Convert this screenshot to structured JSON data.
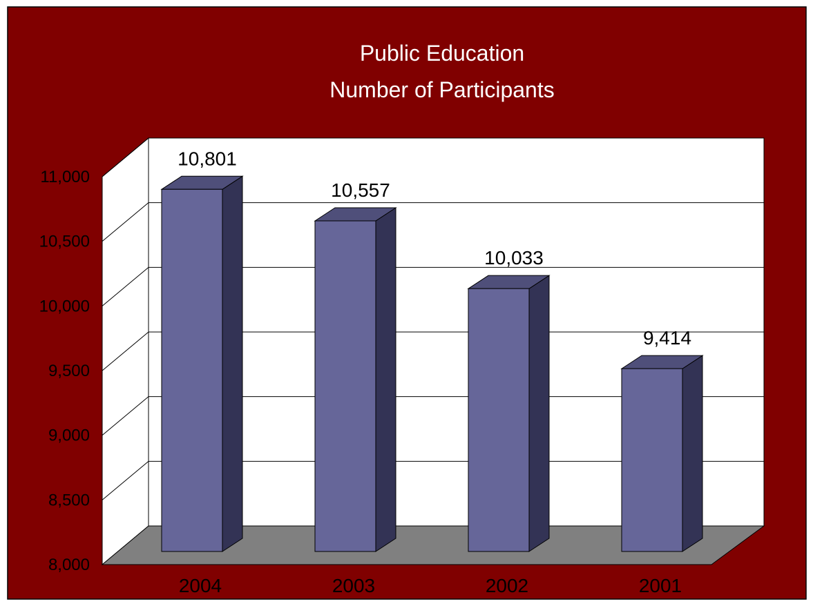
{
  "chart_data": {
    "type": "bar",
    "title_lines": [
      "Public Education",
      "Number of Participants"
    ],
    "categories": [
      "2004",
      "2003",
      "2002",
      "2001"
    ],
    "values": [
      10801,
      10557,
      10033,
      9414
    ],
    "value_labels": [
      "10,801",
      "10,557",
      "10,033",
      "9,414"
    ],
    "ylim": [
      8000,
      11000
    ],
    "yticks": [
      8000,
      8500,
      9000,
      9500,
      10000,
      10500,
      11000
    ],
    "ytick_labels": [
      "8,000",
      "8,500",
      "9,000",
      "9,500",
      "10,000",
      "10,500",
      "11,000"
    ],
    "grid": true,
    "legend": "none",
    "three_d": true
  },
  "colors": {
    "background": "#800000",
    "plot_wall": "#ffffff",
    "floor": "#808080",
    "bar_front": "#666699",
    "bar_top": "#4f4f7a",
    "bar_side": "#333355",
    "text": "#000000",
    "title_text": "#ffffff",
    "frame": "#000000"
  }
}
